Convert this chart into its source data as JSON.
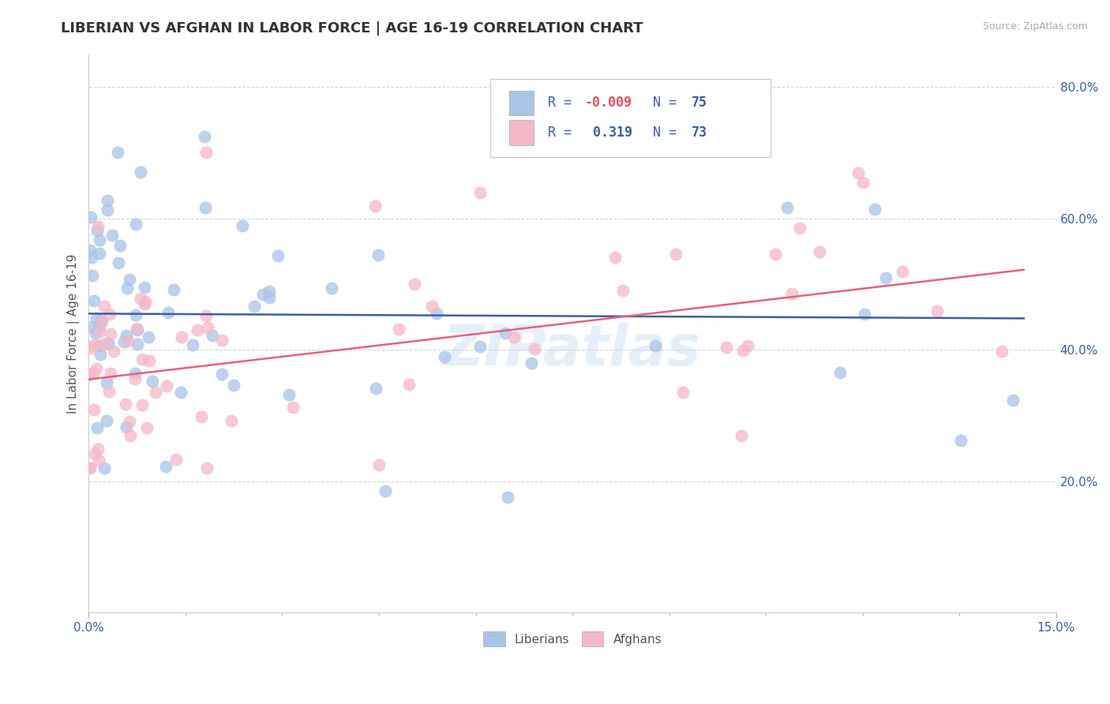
{
  "title": "LIBERIAN VS AFGHAN IN LABOR FORCE | AGE 16-19 CORRELATION CHART",
  "source_text": "Source: ZipAtlas.com",
  "ylabel": "In Labor Force | Age 16-19",
  "xlim": [
    0.0,
    0.15
  ],
  "ylim": [
    0.0,
    0.85
  ],
  "x_tick_positions": [
    0.0,
    0.15
  ],
  "x_tick_labels": [
    "0.0%",
    "15.0%"
  ],
  "y_tick_positions": [
    0.2,
    0.4,
    0.6,
    0.8
  ],
  "y_tick_labels": [
    "20.0%",
    "40.0%",
    "60.0%",
    "80.0%"
  ],
  "liberian_color": "#a8c4e8",
  "afghan_color": "#f5b8c8",
  "liberian_line_color": "#3a5fa8",
  "afghan_line_color": "#e8607a",
  "legend_r_color": "#3a5fa8",
  "legend_n_color": "#3a5fa8",
  "tick_color": "#3a5fa8",
  "ylabel_color": "#555555",
  "R_liberian": -0.009,
  "N_liberian": 75,
  "R_afghan": 0.319,
  "N_afghan": 73,
  "background_color": "#ffffff",
  "grid_color": "#cccccc",
  "watermark_text": "ZIPatlas",
  "title_fontsize": 13,
  "axis_label_fontsize": 11,
  "tick_fontsize": 11,
  "legend_fontsize": 12,
  "liberian_line_y_intercept": 0.455,
  "liberian_line_slope": -0.05,
  "afghan_line_y_intercept": 0.355,
  "afghan_line_slope": 1.15
}
